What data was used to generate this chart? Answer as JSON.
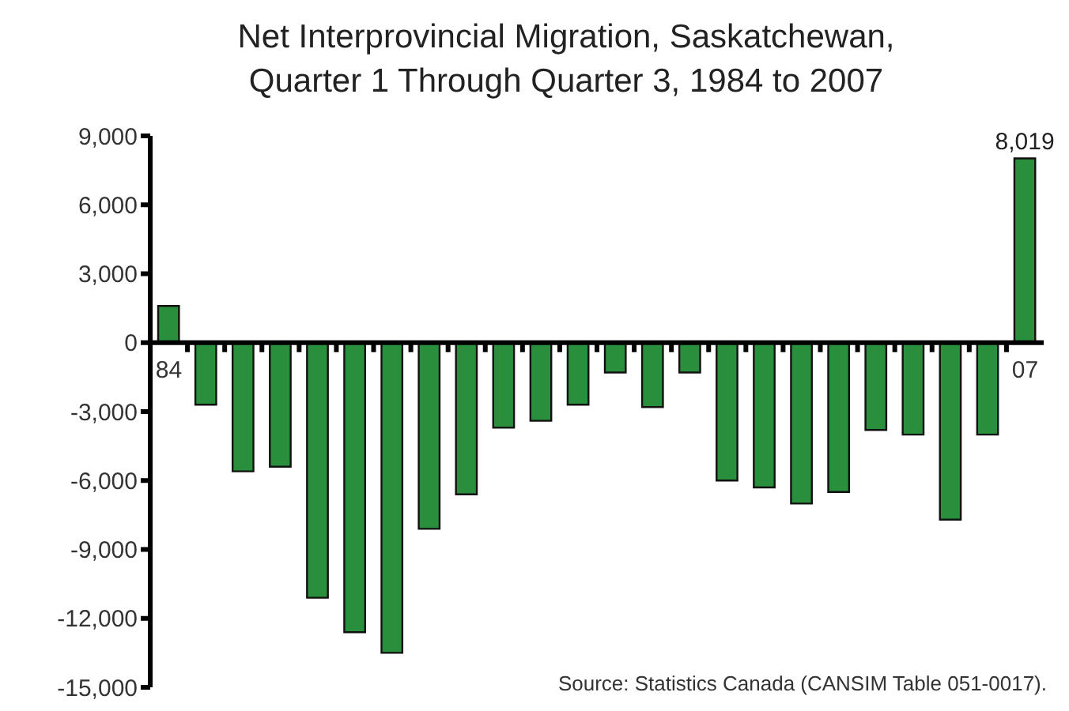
{
  "chart_data": {
    "type": "bar",
    "title": "Net Interprovincial Migration, Saskatchewan, Quarter 1 Through Quarter 3, 1984 to 2007",
    "categories": [
      "84",
      null,
      null,
      null,
      null,
      null,
      null,
      null,
      null,
      null,
      null,
      null,
      null,
      null,
      null,
      null,
      null,
      null,
      null,
      null,
      null,
      null,
      null,
      "07"
    ],
    "values": [
      1600,
      -2700,
      -5600,
      -5400,
      -11100,
      -12600,
      -13500,
      -8100,
      -6600,
      -3700,
      -3400,
      -2700,
      -1300,
      -2800,
      -1300,
      -6000,
      -6300,
      -7000,
      -6500,
      -3800,
      -4000,
      -7700,
      -4000,
      8019
    ],
    "value_labels": [
      null,
      null,
      null,
      null,
      null,
      null,
      null,
      null,
      null,
      null,
      null,
      null,
      null,
      null,
      null,
      null,
      null,
      null,
      null,
      null,
      null,
      null,
      null,
      "8,019"
    ],
    "color": "#2a8f3c",
    "ylim": [
      -15000,
      9000
    ],
    "yticks": [
      {
        "value": -15000,
        "label": "-15,000"
      },
      {
        "value": -12000,
        "label": "-12,000"
      },
      {
        "value": -9000,
        "label": "-9,000"
      },
      {
        "value": -6000,
        "label": "-6,000"
      },
      {
        "value": -3000,
        "label": "-3,000"
      },
      0,
      {
        "value": 3000,
        "label": "3,000"
      },
      {
        "value": 6000,
        "label": "6,000"
      },
      {
        "value": 9000,
        "label": "9,000"
      }
    ],
    "grid": false,
    "legend": false,
    "annotations": [
      "Source:  Statistics Canada (CANSIM Table 051-0017)."
    ]
  }
}
